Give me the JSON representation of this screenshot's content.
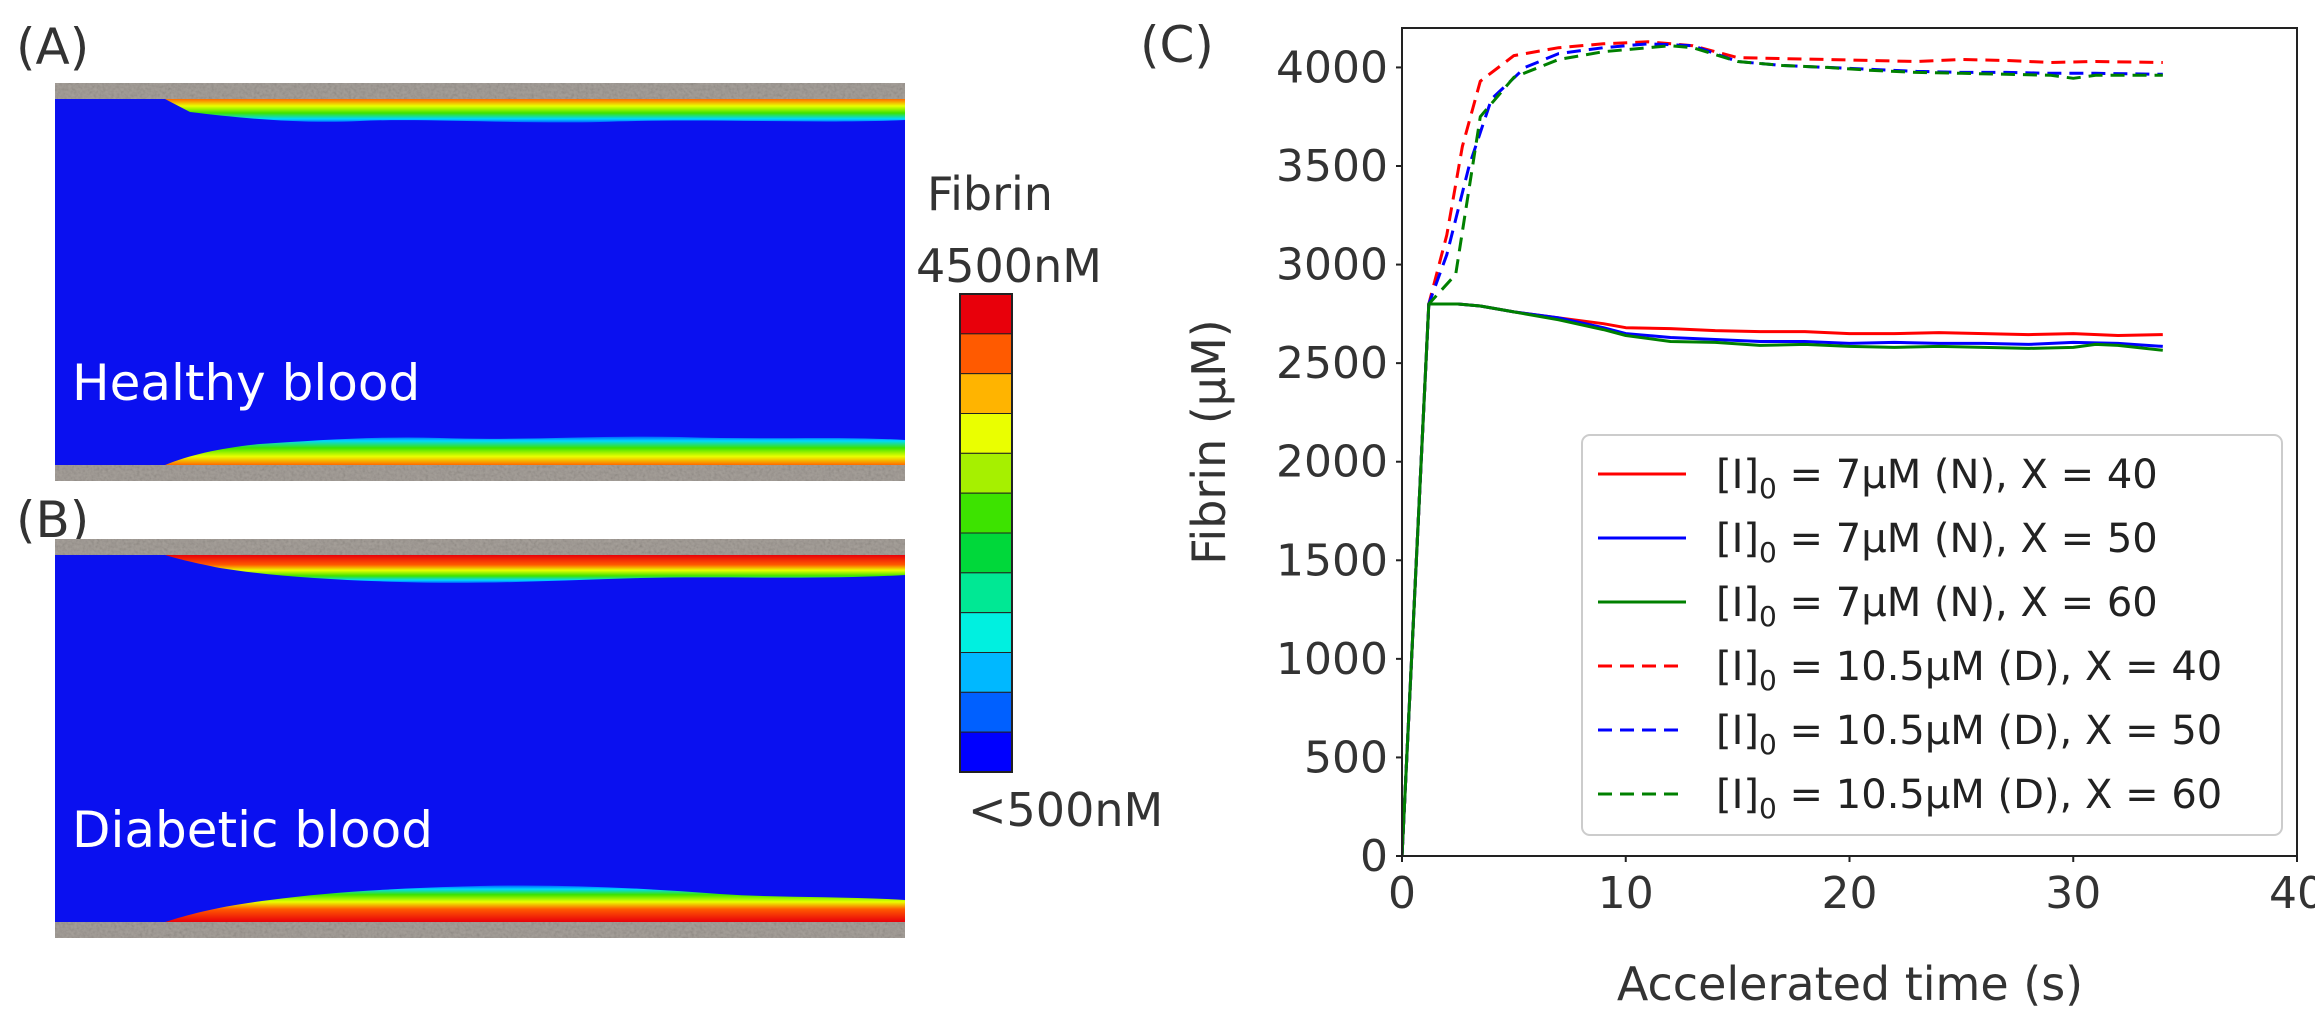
{
  "panels": {
    "a": {
      "label": "(A)",
      "caption": "Healthy blood"
    },
    "b": {
      "label": "(B)",
      "caption": "Diabetic blood"
    },
    "c": {
      "label": "(C)"
    }
  },
  "colorbar": {
    "title": "Fibrin",
    "max_label": "4500nM",
    "min_label": "<500nM",
    "colors": [
      "#e8000b",
      "#ff5a00",
      "#ffb400",
      "#eaff00",
      "#a6f000",
      "#3de300",
      "#00d83a",
      "#00e894",
      "#00f0e0",
      "#00b8ff",
      "#0060ff",
      "#0000ff"
    ]
  },
  "channel_colors": {
    "background": "#0a10f0",
    "wall": "#a8a29c",
    "fibrin_low": "#00d8ff",
    "fibrin_mid": "#b8ff20",
    "fibrin_high": "#ff2000"
  },
  "chart_data": {
    "type": "line",
    "xlabel": "Accelerated time (s)",
    "ylabel": "Fibrin (μM)",
    "xlim": [
      0,
      40
    ],
    "ylim": [
      0,
      4200
    ],
    "xticks": [
      0,
      10,
      20,
      30,
      40
    ],
    "yticks": [
      0,
      500,
      1000,
      1500,
      2000,
      2500,
      3000,
      3500,
      4000
    ],
    "legend_position": "lower-right",
    "series": [
      {
        "name": "[I]0 = 7μM (N), X = 40",
        "prefix": "[I]",
        "sub": "0",
        "suffix": " = 7μM (N), X = 40",
        "color": "#ff0000",
        "dash": "solid",
        "x": [
          0,
          1.2,
          2.5,
          3.5,
          5,
          7,
          9,
          10,
          12,
          14,
          16,
          18,
          20,
          22,
          24,
          26,
          28,
          30,
          32,
          34
        ],
        "y": [
          0,
          2800,
          2800,
          2790,
          2760,
          2730,
          2700,
          2680,
          2675,
          2665,
          2660,
          2660,
          2650,
          2650,
          2655,
          2650,
          2645,
          2650,
          2640,
          2645
        ]
      },
      {
        "name": "[I]0 = 7μM (N), X = 50",
        "prefix": "[I]",
        "sub": "0",
        "suffix": " = 7μM (N), X = 50",
        "color": "#0000ff",
        "dash": "solid",
        "x": [
          0,
          1.2,
          2.5,
          3.5,
          5,
          7,
          9,
          10,
          12,
          14,
          16,
          18,
          20,
          22,
          24,
          26,
          28,
          30,
          32,
          34
        ],
        "y": [
          0,
          2800,
          2800,
          2790,
          2760,
          2730,
          2680,
          2650,
          2630,
          2620,
          2610,
          2610,
          2600,
          2605,
          2600,
          2600,
          2595,
          2605,
          2600,
          2585
        ]
      },
      {
        "name": "[I]0 = 7μM (N), X = 60",
        "prefix": "[I]",
        "sub": "0",
        "suffix": " = 7μM (N), X = 60",
        "color": "#008000",
        "dash": "solid",
        "x": [
          0,
          1.2,
          2.5,
          3.5,
          5,
          7,
          9,
          10,
          12,
          14,
          16,
          18,
          20,
          22,
          24,
          26,
          28,
          30,
          31,
          32,
          34
        ],
        "y": [
          0,
          2800,
          2800,
          2790,
          2760,
          2720,
          2670,
          2640,
          2610,
          2605,
          2590,
          2595,
          2585,
          2580,
          2585,
          2580,
          2575,
          2580,
          2595,
          2590,
          2565
        ]
      },
      {
        "name": "[I]0 = 10.5μM (D), X = 40",
        "prefix": "[I]",
        "sub": "0",
        "suffix": " = 10.5μM (D), X = 40",
        "color": "#ff0000",
        "dash": "dashed",
        "x": [
          0,
          1.2,
          2,
          2.7,
          3.5,
          5,
          7,
          9,
          11,
          13,
          15,
          17,
          19,
          21,
          23,
          25,
          27,
          29,
          31,
          34
        ],
        "y": [
          0,
          2800,
          3150,
          3600,
          3930,
          4060,
          4100,
          4120,
          4130,
          4110,
          4050,
          4045,
          4040,
          4035,
          4030,
          4040,
          4035,
          4025,
          4030,
          4025
        ]
      },
      {
        "name": "[I]0 = 10.5μM (D), X = 50",
        "prefix": "[I]",
        "sub": "0",
        "suffix": " = 10.5μM (D), X = 50",
        "color": "#0000ff",
        "dash": "dashed",
        "x": [
          0,
          1.2,
          2,
          3,
          4,
          5.5,
          7,
          9,
          11,
          13,
          15,
          17,
          19,
          21,
          23,
          25,
          27,
          29,
          31,
          34
        ],
        "y": [
          0,
          2800,
          3050,
          3500,
          3840,
          4000,
          4070,
          4100,
          4120,
          4110,
          4030,
          4010,
          4000,
          3990,
          3980,
          3975,
          3975,
          3970,
          3970,
          3965
        ]
      },
      {
        "name": "[I]0 = 10.5μM (D), X = 60",
        "prefix": "[I]",
        "sub": "0",
        "suffix": " = 10.5μM (D), X = 60",
        "color": "#008000",
        "dash": "dashed",
        "x": [
          0,
          1.2,
          2.4,
          3.5,
          5,
          7,
          9,
          11,
          12,
          13,
          15,
          17,
          19,
          21,
          23,
          25,
          27,
          29,
          30,
          31,
          34
        ],
        "y": [
          0,
          2800,
          2950,
          3750,
          3950,
          4040,
          4080,
          4100,
          4110,
          4100,
          4030,
          4010,
          4000,
          3985,
          3975,
          3970,
          3965,
          3960,
          3945,
          3960,
          3960
        ]
      }
    ]
  }
}
